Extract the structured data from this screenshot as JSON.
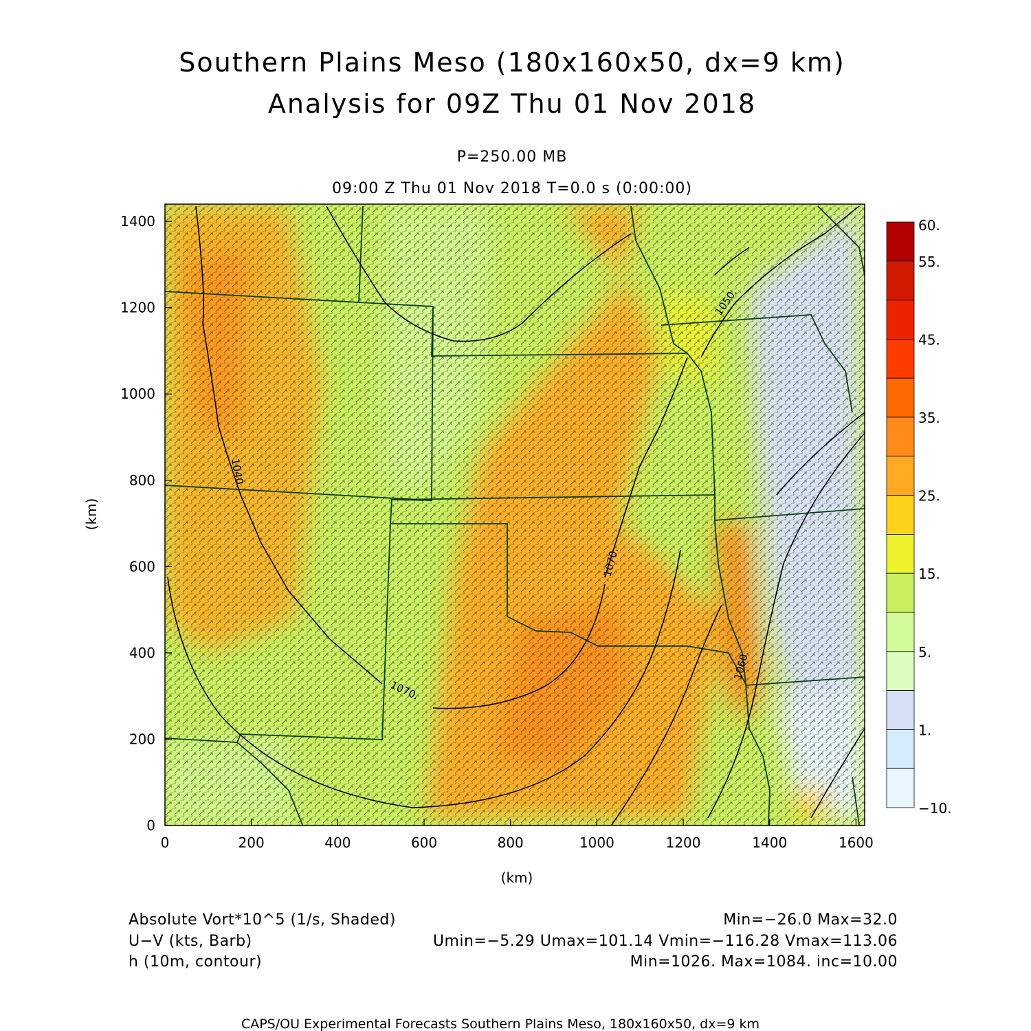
{
  "title_line1": "Southern Plains Meso (180x160x50, dx=9 km)",
  "title_line2": "Analysis for 09Z Thu 01 Nov 2018",
  "level": "P=250.00 MB",
  "time_line": "09:00 Z Thu 01 Nov 2018    T=0.0 s (0:00:00)",
  "x_axis": {
    "label": "(km)",
    "ticks": [
      "0",
      "200",
      "400",
      "600",
      "800",
      "1000",
      "1200",
      "1400",
      "1600"
    ],
    "range": [
      0,
      1620
    ]
  },
  "y_axis": {
    "label": "(km)",
    "ticks": [
      "0",
      "200",
      "400",
      "600",
      "800",
      "1000",
      "1200",
      "1400"
    ],
    "range": [
      0,
      1440
    ]
  },
  "colorbar": {
    "labels": [
      "60.",
      "55.",
      "45.",
      "35.",
      "25.",
      "15.",
      "5.",
      "1.",
      "−10."
    ],
    "colors": [
      "#b30000",
      "#d11a00",
      "#ee2200",
      "#ff3c00",
      "#ff6a00",
      "#ff8c1a",
      "#ffaa22",
      "#ffd21e",
      "#eef22e",
      "#c8f060",
      "#d4fb99",
      "#dcfcc0",
      "#d8e0f8",
      "#d4ecfc",
      "#eaf6fe"
    ]
  },
  "legend": {
    "row1": {
      "left": "Absolute Vort*10^5 (1/s, Shaded)",
      "right": "Min=−26.0 Max=32.0"
    },
    "row2": {
      "left": "U−V (kts, Barb)",
      "right": "Umin=−5.29 Umax=101.14 Vmin=−116.28 Vmax=113.06"
    },
    "row3": {
      "left": "h (10m, contour)",
      "right": "Min=1026. Max=1084. inc=10.00"
    }
  },
  "contour_labels": [
    "1040.",
    "1070.",
    "1070.",
    "1060.",
    "1050."
  ],
  "footer": "CAPS/OU Experimental Forecasts  Southern Plains Meso, 180x160x50, dx=9 km"
}
